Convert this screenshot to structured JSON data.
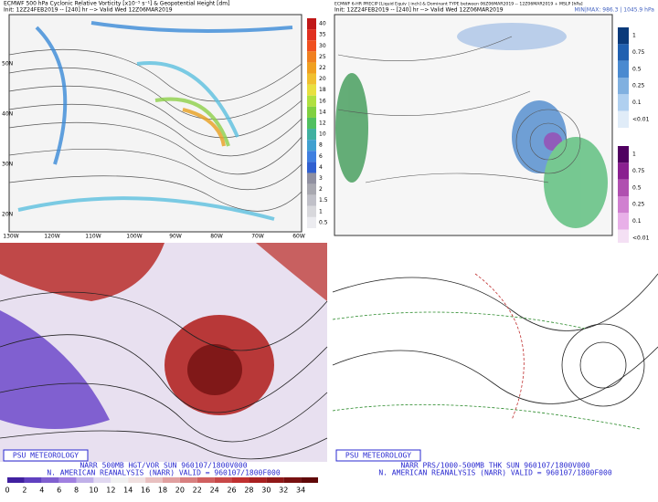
{
  "panels": [
    {
      "title": "ECMWF 500 hPa Cyclonic Relative Vorticity [x10⁻⁵ s⁻¹] & Geopotential Height [dm]",
      "subtitle": "Init: 12Z24FEB2019 -- [240] hr --> Valid Wed 12Z06MAR2019",
      "lat_labels": [
        "50N",
        "40N",
        "30N",
        "20N"
      ],
      "lon_labels": [
        "130W",
        "120W",
        "110W",
        "100W",
        "90W",
        "80W",
        "70W",
        "60W"
      ],
      "colorbar": [
        "40",
        "35",
        "30",
        "25",
        "22",
        "20",
        "18",
        "16",
        "14",
        "12",
        "10",
        "8",
        "6",
        "4",
        "3",
        "2",
        "1.5",
        "1",
        "0.5"
      ]
    },
    {
      "title": "ECMWF 6-HR PRECIP [Liquid Equiv | inch] & Dominant TYPE between 06Z06MAR2019 -- 12Z06MAR2019 + MSLP [hPa]",
      "subtitle": "Init: 12Z24FEB2019 -- [240] hr --> Valid Wed 12Z06MAR2019",
      "minmax": "MIN|MAX: 986.3 | 1045.9 hPa",
      "colorbar": [
        "1",
        "0.75",
        "0.5",
        "0.25",
        "0.1",
        "<0.01",
        "1",
        "0.75",
        "0.5",
        "0.25",
        "0.1",
        "<0.01"
      ]
    },
    {
      "badge": "PSU METEOROLOGY",
      "line1": "NARR 500MB HGT/VOR SUN 960107/1800V000",
      "line2": "N. AMERICAN REANALYSIS (NARR) VALID = 960107/1800F000",
      "scale": [
        "0",
        "2",
        "4",
        "6",
        "8",
        "10",
        "12",
        "14",
        "16",
        "18",
        "20",
        "22",
        "24",
        "26",
        "28",
        "30",
        "32",
        "34"
      ]
    },
    {
      "badge": "PSU METEOROLOGY",
      "line1": "NARR PRS/1000-500MB THK SUN 960107/1800V000",
      "line2": "N. AMERICAN REANALYSIS (NARR) VALID = 960107/1800F000"
    }
  ]
}
